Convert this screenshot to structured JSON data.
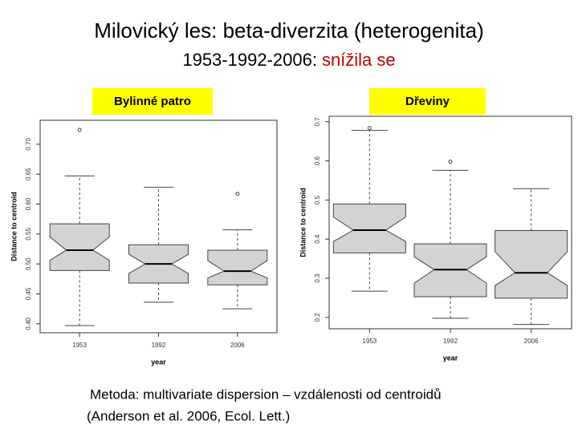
{
  "title": "Milovický les: beta-diverzita (heterogenita)",
  "subtitle": {
    "text": "1953-1992-2006:",
    "highlight": "snížila se"
  },
  "chart_data": [
    {
      "type": "box",
      "title": "Bylinné patro",
      "ylabel": "Distance to centroid",
      "xlabel": "year",
      "categories": [
        "1953",
        "1992",
        "2006"
      ],
      "color": "#d3d3d3",
      "ylim": [
        0.385,
        0.74
      ],
      "yticks": [
        {
          "value": 0.4,
          "label": "0.40"
        },
        0.45,
        {
          "value": 0.5,
          "label": "0.50"
        },
        0.55,
        {
          "value": 0.6,
          "label": "0.60"
        },
        0.65,
        {
          "value": 0.7,
          "label": "0.70"
        }
      ],
      "boxes": [
        {
          "whisker_low": 0.397,
          "q1": 0.489,
          "median": 0.523,
          "q3": 0.567,
          "whisker_high": 0.647,
          "outliers": [
            0.724
          ]
        },
        {
          "whisker_low": 0.436,
          "q1": 0.468,
          "median": 0.5,
          "q3": 0.532,
          "whisker_high": 0.628,
          "outliers": []
        },
        {
          "whisker_low": 0.425,
          "q1": 0.465,
          "median": 0.488,
          "q3": 0.523,
          "whisker_high": 0.557,
          "outliers": [
            0.617
          ]
        }
      ]
    },
    {
      "type": "box",
      "title": "Dřeviny",
      "ylabel": "Distance to centroid",
      "xlabel": "year",
      "categories": [
        "1953",
        "1992",
        "2006"
      ],
      "color": "#d3d3d3",
      "ylim": [
        0.171,
        0.714
      ],
      "yticks": [
        0.2,
        0.3,
        0.4,
        0.5,
        0.6,
        0.7
      ],
      "boxes": [
        {
          "whisker_low": 0.267,
          "q1": 0.365,
          "median": 0.423,
          "q3": 0.49,
          "whisker_high": 0.678,
          "outliers": [
            0.684
          ]
        },
        {
          "whisker_low": 0.198,
          "q1": 0.253,
          "median": 0.322,
          "q3": 0.388,
          "whisker_high": 0.576,
          "outliers": [
            0.598
          ]
        },
        {
          "whisker_low": 0.182,
          "q1": 0.249,
          "median": 0.314,
          "q3": 0.422,
          "whisker_high": 0.529,
          "outliers": []
        }
      ]
    }
  ],
  "footnote": [
    "Metoda: multivariate dispersion – vzdálenosti od centroidů",
    "(Anderson et al. 2006, Ecol. Lett.)"
  ]
}
